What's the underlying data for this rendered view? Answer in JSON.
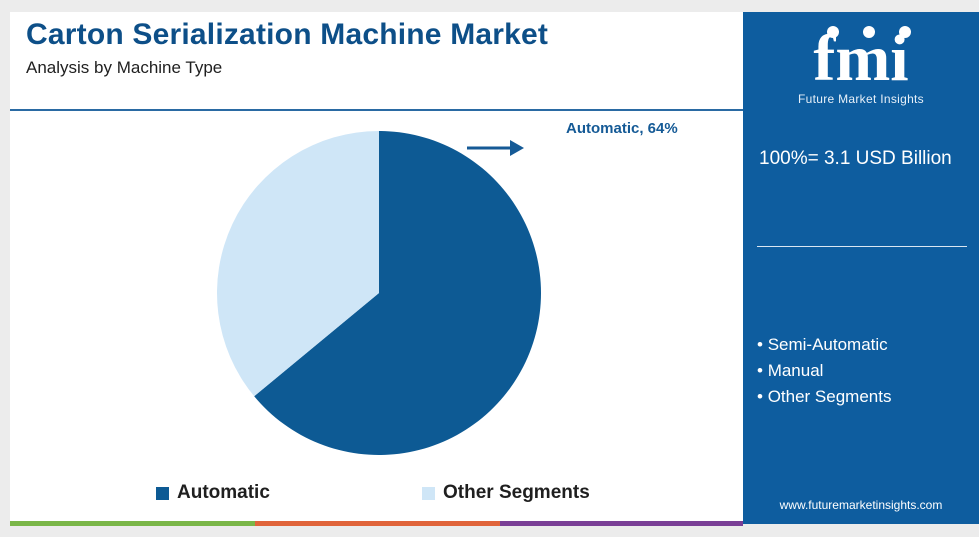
{
  "header": {
    "title": "Carton Serialization Machine Market",
    "subtitle": "Analysis by Machine Type"
  },
  "callout": {
    "label": "Automatic, 64%"
  },
  "legend": [
    {
      "label": "Automatic",
      "color": "#0d5a94"
    },
    {
      "label": "Other Segments",
      "color": "#cfe6f7"
    }
  ],
  "sidebar": {
    "logo_text": "fmi",
    "logo_tagline": "Future Market Insights",
    "total": "100%= 3.1 USD Billion",
    "segments": [
      "Semi-Automatic",
      "Manual",
      "Other Segments"
    ],
    "website": "www.futuremarketinsights.com"
  },
  "bottom_bar_colors": [
    "#7ab648",
    "#e0643a",
    "#7a3f96"
  ],
  "chart_data": {
    "type": "pie",
    "title": "Carton Serialization Machine Market",
    "subtitle": "Analysis by Machine Type",
    "slices": [
      {
        "label": "Automatic",
        "value": 64,
        "color": "#0d5a94"
      },
      {
        "label": "Other Segments",
        "value": 36,
        "color": "#cfe6f7"
      }
    ],
    "start_angle_deg": 0,
    "direction": "clockwise",
    "annotations": [
      "Automatic, 64%"
    ],
    "legend_position": "bottom"
  }
}
